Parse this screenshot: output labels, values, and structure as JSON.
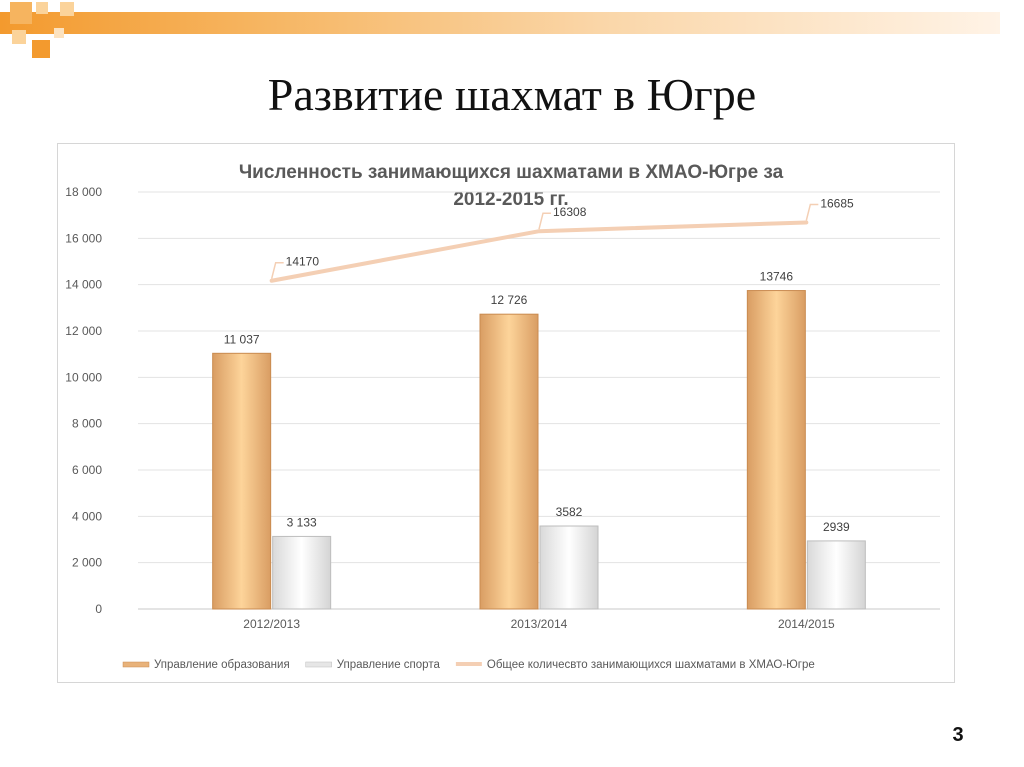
{
  "slide": {
    "title": "Развитие шахмат в Югре",
    "page_number": "3"
  },
  "colors": {
    "accent": "#f39a2e",
    "bar_orange": "#e8b27a",
    "bar_white": "#e6e6e6",
    "line": "#f7d9c4"
  },
  "chart_data": {
    "type": "bar",
    "title": "Численность занимающихся шахматами в ХМАО-Югре за 2012-2015 гг.",
    "title_lines": [
      "Численность занимающихся шахматами в ХМАО-Югре за",
      "2012-2015 гг."
    ],
    "categories": [
      "2012/2013",
      "2013/2014",
      "2014/2015"
    ],
    "ylim": [
      0,
      18000
    ],
    "yticks": [
      0,
      2000,
      4000,
      6000,
      8000,
      10000,
      12000,
      14000,
      16000,
      18000
    ],
    "ytick_labels": [
      "0",
      "2 000",
      "4 000",
      "6 000",
      "8 000",
      "10 000",
      "12 000",
      "14 000",
      "16 000",
      "18 000"
    ],
    "grid": true,
    "legend_position": "bottom",
    "series": [
      {
        "name": "Управление образования",
        "type": "bar",
        "values": [
          11037,
          12726,
          13746
        ],
        "labels": [
          "11 037",
          "12 726",
          "13746"
        ]
      },
      {
        "name": "Управление спорта",
        "type": "bar",
        "values": [
          3133,
          3582,
          2939
        ],
        "labels": [
          "3 133",
          "3582",
          "2939"
        ]
      },
      {
        "name": "Общее количесвто занимающихся шахматами в ХМАО-Югре",
        "type": "line",
        "values": [
          14170,
          16308,
          16685
        ],
        "labels": [
          "14170",
          "16308",
          "16685"
        ]
      }
    ]
  }
}
